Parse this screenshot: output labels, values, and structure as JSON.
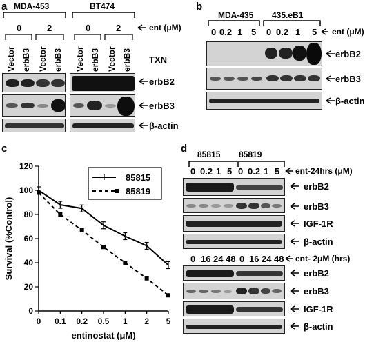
{
  "panel_a": {
    "letter": "a",
    "cell_lines": [
      "MDA-453",
      "BT474"
    ],
    "doses": [
      "0",
      "2",
      "0",
      "2"
    ],
    "ent_label": "ent (μM)",
    "lanes": [
      "Vector",
      "erbB3",
      "Vector",
      "erbB3",
      "Vector",
      "erbB3",
      "Vector",
      "erbB3"
    ],
    "txn_label": "TXN",
    "blots": [
      "erbB2",
      "erbB3",
      "β-actin"
    ]
  },
  "panel_b": {
    "letter": "b",
    "cell_lines": [
      "MDA-435",
      "435.eB1"
    ],
    "doses": [
      "0",
      "0.2",
      "1",
      "5",
      "0",
      "0.2",
      "1",
      "5"
    ],
    "ent_label": "ent (μM)",
    "blots": [
      "erbB2",
      "erbB3",
      "β-actin"
    ]
  },
  "panel_c": {
    "letter": "c",
    "chart_data": {
      "type": "line",
      "categories": [
        "0",
        "0.1",
        "0.2",
        "0.5",
        "1",
        "2",
        "5"
      ],
      "series": [
        {
          "name": "85815",
          "values": [
            100,
            88,
            85,
            71,
            62,
            54,
            38
          ],
          "style": "solid"
        },
        {
          "name": "85819",
          "values": [
            98,
            80,
            67,
            53,
            40,
            27,
            13
          ],
          "style": "dashed"
        }
      ],
      "xlabel": "entinostat (μM)",
      "ylabel": "Survival (%Control)",
      "ylim": [
        0,
        120
      ],
      "yticks": [
        "0",
        "20",
        "40",
        "60",
        "80",
        "100",
        "120"
      ],
      "legend": "top-right",
      "grid": false
    }
  },
  "panel_d": {
    "letter": "d",
    "cell_lines": [
      "85815",
      "85819"
    ],
    "doses_24h": [
      "0",
      "0.2",
      "1",
      "5",
      "0",
      "0.2",
      "1",
      "5"
    ],
    "label_24h": "ent-24hrs (μM)",
    "times": [
      "0",
      "16",
      "24",
      "48",
      "0",
      "16",
      "24",
      "48"
    ],
    "label_time": "ent- 2μM (hrs)",
    "blots_top": [
      "erbB2",
      "erbB3",
      "IGF-1R",
      "β-actin"
    ],
    "blots_bottom": [
      "erbB2",
      "erbB3",
      "IGF-1R",
      "β-actin"
    ]
  },
  "colors": {
    "band": "#1a1a1a",
    "blot_bg": "#d3d3d3"
  }
}
